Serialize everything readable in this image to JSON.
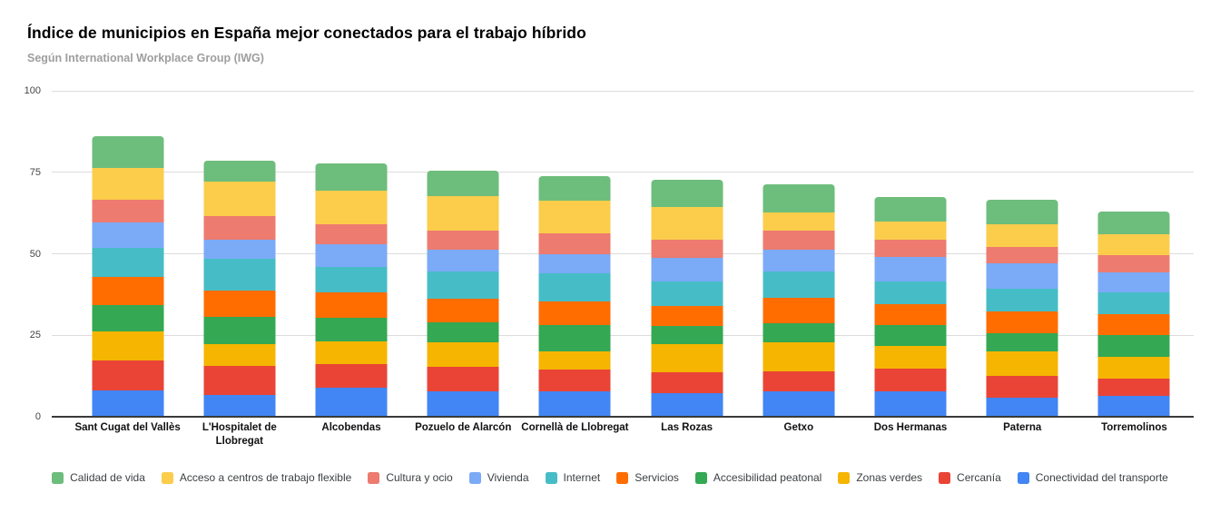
{
  "header": {
    "title": "Índice de municipios en España mejor conectados para el trabajo híbrido",
    "subtitle": "Según International Workplace Group (IWG)"
  },
  "colors": {
    "background": "#ffffff",
    "gridline": "#dcdcdc",
    "axis_baseline": "#3a3a3a",
    "title_text": "#000000",
    "subtitle_text": "#9e9e9e",
    "axis_label_text": "#444444",
    "category_label_text": "#111111",
    "legend_text": "#3c4043"
  },
  "chart_data": {
    "type": "bar",
    "stacked": true,
    "title": "Índice de municipios en España mejor conectados para el trabajo híbrido",
    "subtitle": "Según International Workplace Group (IWG)",
    "xlabel": "",
    "ylabel": "",
    "ylim": [
      0,
      100
    ],
    "yticks": [
      0,
      25,
      50,
      75,
      100
    ],
    "grid": true,
    "legend_position": "bottom",
    "categories": [
      "Sant Cugat del Vallès",
      "L'Hospitalet de Llobregat",
      "Alcobendas",
      "Pozuelo de Alarcón",
      "Cornellà de Llobregat",
      "Las Rozas",
      "Getxo",
      "Dos Hermanas",
      "Paterna",
      "Torremolinos"
    ],
    "totals": [
      86.0,
      78.7,
      77.7,
      75.6,
      73.7,
      72.6,
      71.4,
      67.5,
      66.7,
      63.1
    ],
    "series": [
      {
        "name": "Calidad de vida",
        "color": "#6dbd7c",
        "values": [
          9.7,
          6.5,
          8.2,
          7.9,
          7.3,
          8.2,
          8.7,
          7.6,
          7.7,
          7.2
        ]
      },
      {
        "name": "Acceso a centros de trabajo flexible",
        "color": "#fbcd4b",
        "values": [
          9.8,
          10.6,
          10.3,
          10.6,
          10.0,
          10.2,
          5.7,
          5.7,
          7.0,
          6.4
        ]
      },
      {
        "name": "Cultura y ocio",
        "color": "#ed7b6f",
        "values": [
          6.8,
          7.3,
          6.4,
          5.9,
          6.6,
          5.5,
          5.8,
          5.3,
          5.0,
          5.1
        ]
      },
      {
        "name": "Vivienda",
        "color": "#7baaf7",
        "values": [
          8.0,
          5.8,
          6.7,
          6.6,
          5.8,
          7.2,
          6.7,
          7.5,
          7.7,
          6.1
        ]
      },
      {
        "name": "Internet",
        "color": "#46bdc6",
        "values": [
          8.7,
          9.9,
          8.0,
          8.4,
          8.6,
          7.5,
          8.1,
          6.9,
          6.9,
          6.8
        ]
      },
      {
        "name": "Servicios",
        "color": "#ff6d01",
        "values": [
          8.7,
          8.0,
          7.8,
          7.3,
          7.2,
          6.1,
          7.7,
          6.3,
          6.8,
          6.4
        ]
      },
      {
        "name": "Accesibilidad peatonal",
        "color": "#34a853",
        "values": [
          8.2,
          8.3,
          7.1,
          6.1,
          8.0,
          5.6,
          5.8,
          6.4,
          5.4,
          6.6
        ]
      },
      {
        "name": "Zonas verdes",
        "color": "#f5b500",
        "values": [
          8.7,
          6.8,
          7.0,
          7.5,
          5.6,
          8.6,
          9.0,
          7.0,
          7.7,
          6.7
        ]
      },
      {
        "name": "Cercanía",
        "color": "#e94436",
        "values": [
          9.2,
          8.9,
          7.4,
          7.6,
          6.9,
          6.4,
          6.2,
          7.1,
          6.6,
          5.5
        ]
      },
      {
        "name": "Conectividad del transporte",
        "color": "#4285f4",
        "values": [
          8.2,
          6.6,
          8.8,
          7.7,
          7.7,
          7.3,
          7.7,
          7.7,
          5.9,
          6.3
        ]
      }
    ]
  }
}
